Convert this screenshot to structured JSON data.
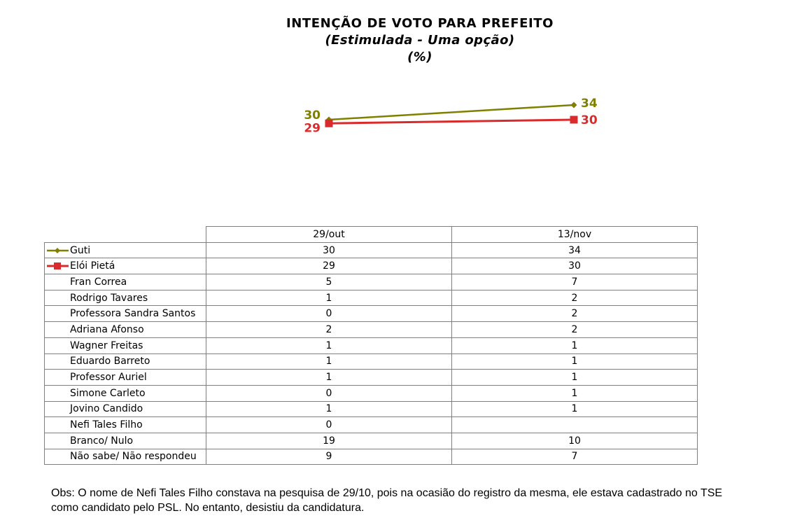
{
  "title": "INTENÇÃO DE VOTO PARA PREFEITO",
  "subtitle": "(Estimulada - Uma opção)",
  "unit": "(%)",
  "colors": {
    "guti": "#808000",
    "eloi": "#d92b2b",
    "grid": "#7f7f7f"
  },
  "chart_data": {
    "type": "line",
    "x": [
      "29/out",
      "13/nov"
    ],
    "series": [
      {
        "name": "Guti",
        "values": [
          30,
          34
        ],
        "marker": "diamond",
        "color": "#808000"
      },
      {
        "name": "Elói Pietá",
        "values": [
          29,
          30
        ],
        "marker": "square",
        "color": "#d92b2b"
      }
    ],
    "data_labels": true,
    "grid": false,
    "legend": "table"
  },
  "table": {
    "columns": [
      "29/out",
      "13/nov"
    ],
    "rows": [
      {
        "label": "Guti",
        "v1": "30",
        "v2": "34"
      },
      {
        "label": "Elói Pietá",
        "v1": "29",
        "v2": "30"
      },
      {
        "label": "Fran Correa",
        "v1": "5",
        "v2": "7"
      },
      {
        "label": "Rodrigo Tavares",
        "v1": "1",
        "v2": "2"
      },
      {
        "label": "Professora Sandra Santos",
        "v1": "0",
        "v2": "2"
      },
      {
        "label": "Adriana Afonso",
        "v1": "2",
        "v2": "2"
      },
      {
        "label": "Wagner Freitas",
        "v1": "1",
        "v2": "1"
      },
      {
        "label": "Eduardo Barreto",
        "v1": "1",
        "v2": "1"
      },
      {
        "label": "Professor Auriel",
        "v1": "1",
        "v2": "1"
      },
      {
        "label": "Simone Carleto",
        "v1": "0",
        "v2": "1"
      },
      {
        "label": "Jovino Candido",
        "v1": "1",
        "v2": "1"
      },
      {
        "label": "Nefi Tales Filho",
        "v1": "0",
        "v2": ""
      },
      {
        "label": "Branco/ Nulo",
        "v1": "19",
        "v2": "10"
      },
      {
        "label": "Não sabe/ Não respondeu",
        "v1": "9",
        "v2": "7"
      }
    ]
  },
  "obs": "Obs: O nome de Nefi Tales Filho constava na pesquisa de 29/10, pois na ocasião do registro da mesma, ele estava cadastrado no TSE como candidato pelo PSL. No entanto, desistiu da candidatura."
}
